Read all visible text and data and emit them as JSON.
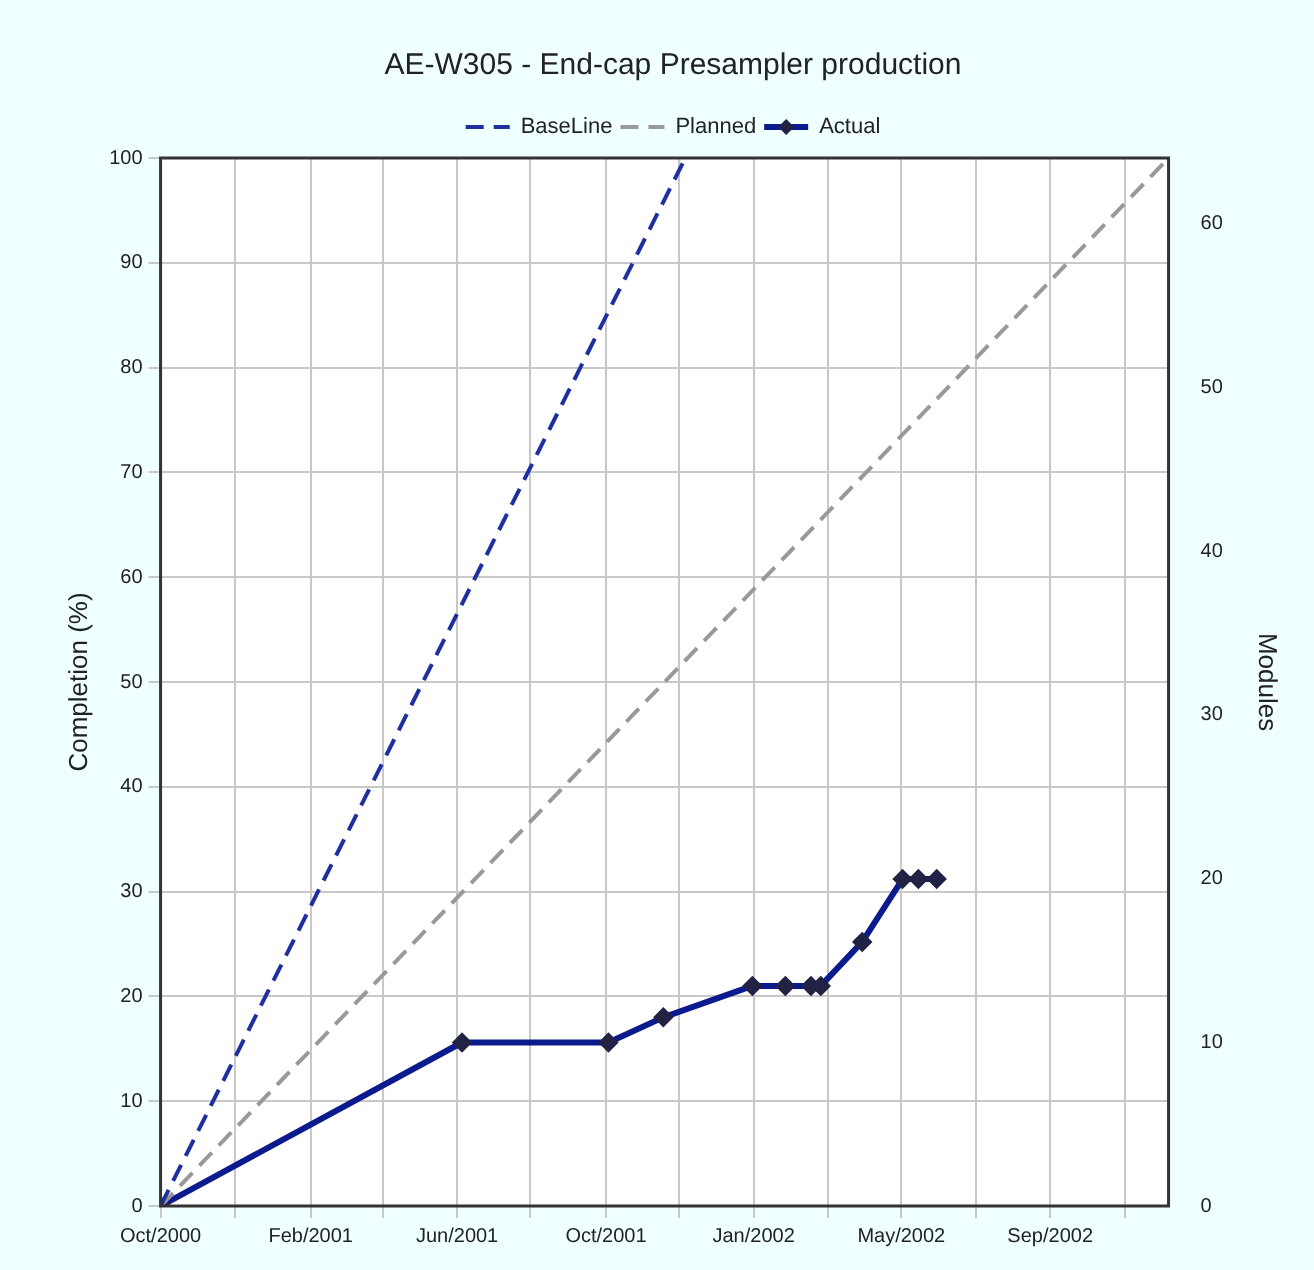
{
  "chart_data": {
    "type": "line",
    "title": "AE-W305 - End-cap Presampler production",
    "ylabel": "Completion (%)",
    "y2label": "Modules",
    "xlim": [
      "2000-10-01",
      "2003-01-05"
    ],
    "xticks": [
      {
        "value": "2000-10-01",
        "label": "Oct/2000"
      },
      {
        "value": "2000-12-01",
        "label": null
      },
      {
        "value": "2001-02-01",
        "label": "Feb/2001"
      },
      {
        "value": "2001-04-01",
        "label": null
      },
      {
        "value": "2001-06-01",
        "label": "Jun/2001"
      },
      {
        "value": "2001-07-31",
        "label": null
      },
      {
        "value": "2001-10-01",
        "label": "Oct/2001"
      },
      {
        "value": "2001-11-30",
        "label": null
      },
      {
        "value": "2002-01-30",
        "label": "Jan/2002"
      },
      {
        "value": "2002-04-01",
        "label": null
      },
      {
        "value": "2002-05-31",
        "label": "May/2002"
      },
      {
        "value": "2002-07-31",
        "label": null
      },
      {
        "value": "2002-09-30",
        "label": "Sep/2002"
      },
      {
        "value": "2002-11-30",
        "label": null
      }
    ],
    "ylim": [
      0,
      100
    ],
    "yticks": [
      0,
      10,
      20,
      30,
      40,
      50,
      60,
      70,
      80,
      90,
      100
    ],
    "y2lim": [
      0,
      64
    ],
    "y2ticks": [
      0,
      10,
      20,
      30,
      40,
      50,
      60
    ],
    "grid": true,
    "legend": "top",
    "series": [
      {
        "name": "BaseLine",
        "color": "#1f2f9f",
        "line_style": "dashed",
        "x": [
          "2000-10-01",
          "2001-12-05"
        ],
        "values": [
          0,
          100
        ]
      },
      {
        "name": "Planned",
        "color": "#999999",
        "line_style": "dashed",
        "x": [
          "2000-10-01",
          "2003-01-05"
        ],
        "values": [
          0,
          100
        ]
      },
      {
        "name": "Actual",
        "color": "#0b1a8c",
        "line_style": "solid",
        "marker": "diamond",
        "x": [
          "2000-10-01",
          "2001-06-05",
          "2001-10-03",
          "2001-11-17",
          "2002-01-29",
          "2002-02-25",
          "2002-03-18",
          "2002-03-26",
          "2002-04-29",
          "2002-06-01",
          "2002-06-14",
          "2002-06-29"
        ],
        "values": [
          0,
          15.6,
          15.6,
          18,
          21,
          21,
          21,
          21,
          25.2,
          31.2,
          31.2,
          31.2
        ]
      }
    ]
  }
}
